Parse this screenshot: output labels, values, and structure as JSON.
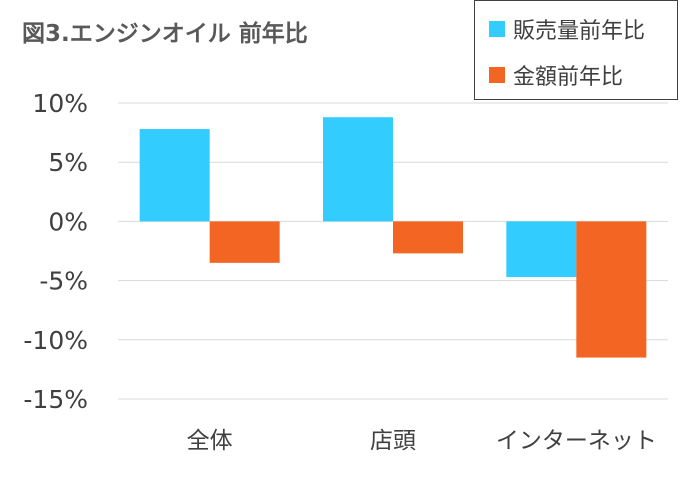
{
  "chart_data": {
    "type": "bar",
    "title": "図3.エンジンオイル 前年比",
    "categories": [
      "全体",
      "店頭",
      "インターネット"
    ],
    "series": [
      {
        "name": "販売量前年比",
        "color": "#33CCFF",
        "values": [
          7.8,
          8.8,
          -4.7
        ]
      },
      {
        "name": "金額前年比",
        "color": "#F26522",
        "values": [
          -3.5,
          -2.7,
          -11.5
        ]
      }
    ],
    "y_ticks": [
      "10%",
      "5%",
      "0%",
      "-5%",
      "-10%",
      "-15%"
    ],
    "ylim": [
      -15,
      10
    ],
    "grid": true,
    "legend_position": "top-right",
    "gridline_color": "#D9D9D9",
    "tick_label_color": "#404040"
  }
}
